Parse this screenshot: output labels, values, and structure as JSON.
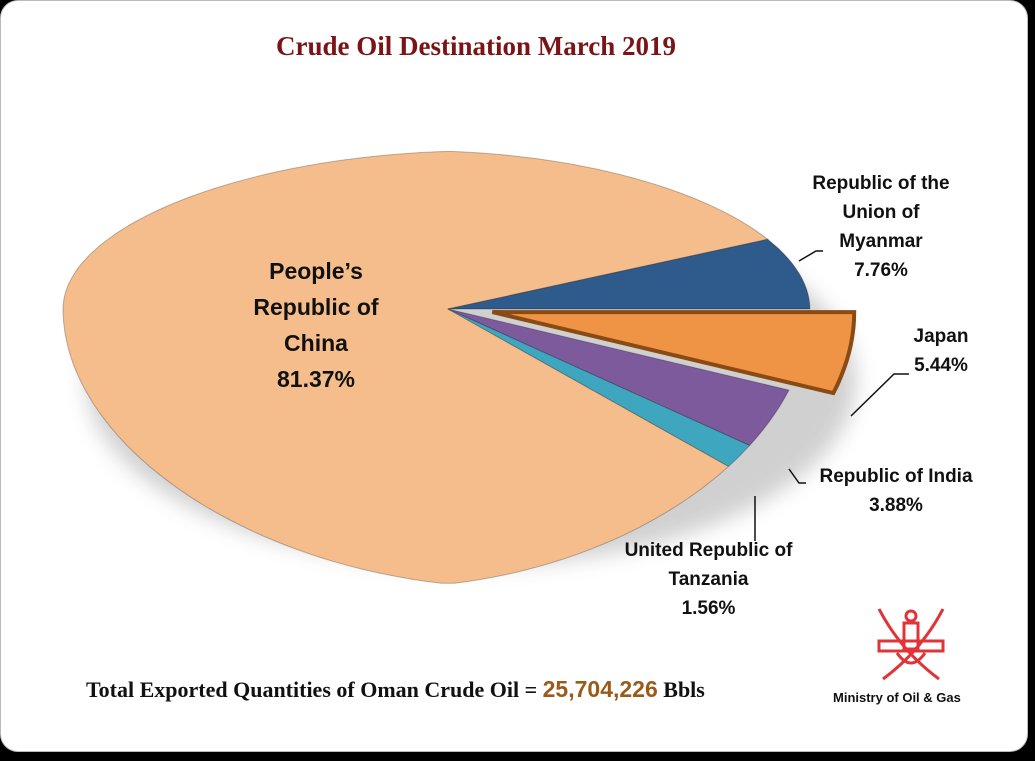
{
  "chart_data": {
    "type": "pie",
    "title": "Crude Oil Destination March 2019",
    "slices": [
      {
        "name": "Republic of the Union of Myanmar",
        "label_lines": [
          "Republic of the",
          "Union of",
          "Myanmar"
        ],
        "value": 7.76,
        "value_label": "7.76%",
        "color": "#2f5a8c",
        "exploded": false
      },
      {
        "name": "Japan",
        "label_lines": [
          "Japan"
        ],
        "value": 5.44,
        "value_label": "5.44%",
        "color": "#ef9344",
        "exploded": true
      },
      {
        "name": "Republic of India",
        "label_lines": [
          "Republic of India"
        ],
        "value": 3.88,
        "value_label": "3.88%",
        "color": "#7c5a9c",
        "exploded": false
      },
      {
        "name": "United Republic of Tanzania",
        "label_lines": [
          "United Republic of",
          "Tanzania"
        ],
        "value": 1.56,
        "value_label": "1.56%",
        "color": "#3fa6c0",
        "exploded": false
      },
      {
        "name": "People's Republic of China",
        "label_lines": [
          "People’s",
          "Republic of",
          "China"
        ],
        "value": 81.37,
        "value_label": "81.37%",
        "color": "#f5bd8c",
        "exploded": false
      }
    ]
  },
  "footer": {
    "total_prefix": "Total Exported Quantities of Oman Crude Oil =",
    "total_value": "25,704,226",
    "total_unit": "Bbls",
    "ministry": "Ministry of Oil & Gas"
  }
}
